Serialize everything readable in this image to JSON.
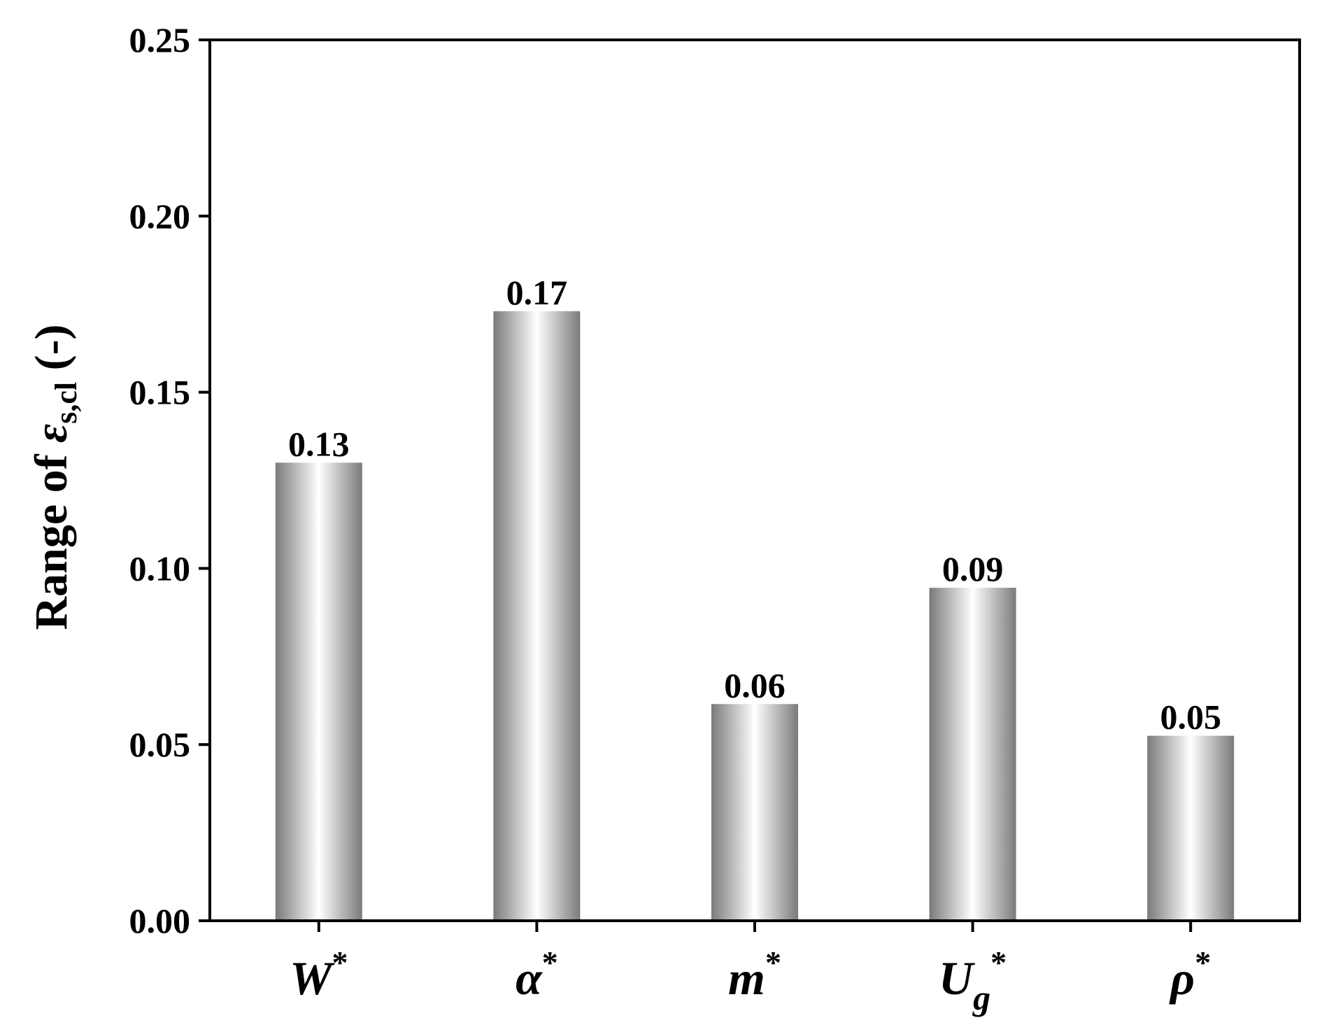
{
  "chart_data": {
    "type": "bar",
    "categories": [
      {
        "base": "W",
        "sub": "",
        "sup": "*"
      },
      {
        "base": "α",
        "sub": "",
        "sup": "*"
      },
      {
        "base": "m",
        "sub": "",
        "sup": "*"
      },
      {
        "base": "U",
        "sub": "g",
        "sup": "*"
      },
      {
        "base": "ρ",
        "sub": "",
        "sup": "*"
      }
    ],
    "values": [
      0.13,
      0.173,
      0.0615,
      0.0945,
      0.0525
    ],
    "data_labels": [
      "0.13",
      "0.17",
      "0.06",
      "0.09",
      "0.05"
    ],
    "ylabel": {
      "prefix": "Range of ",
      "symbol": "ε",
      "subscript": "s,cl",
      "suffix": " (-)"
    },
    "xlabel": "",
    "title": "",
    "ylim": [
      0,
      0.25
    ],
    "yticks": [
      "0.00",
      "0.05",
      "0.10",
      "0.15",
      "0.20",
      "0.25"
    ],
    "grid": false,
    "legend": "none",
    "colors": {
      "bar_edge": "#7a7a7a",
      "bar_center": "#ffffff",
      "axis": "#000000"
    }
  }
}
